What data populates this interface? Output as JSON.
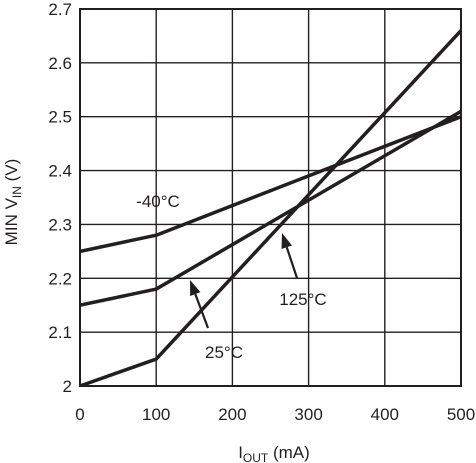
{
  "chart_data": {
    "type": "line",
    "xlabel_main": "I",
    "xlabel_sub": "OUT",
    "xlabel_unit": " (mA)",
    "ylabel_main": "MIN V",
    "ylabel_sub": "IN",
    "ylabel_unit": " (V)",
    "xlim": [
      0,
      500
    ],
    "ylim": [
      2.0,
      2.7
    ],
    "x_ticks": [
      "0",
      "100",
      "200",
      "300",
      "400",
      "500"
    ],
    "y_ticks": [
      "2",
      "2.1",
      "2.2",
      "2.3",
      "2.4",
      "2.5",
      "2.6",
      "2.7"
    ],
    "grid": true,
    "series": [
      {
        "name": "-40°C",
        "x": [
          0,
          100,
          500
        ],
        "y": [
          2.25,
          2.28,
          2.5
        ]
      },
      {
        "name": "25°C",
        "x": [
          0,
          100,
          500
        ],
        "y": [
          2.15,
          2.18,
          2.51
        ]
      },
      {
        "name": "125°C",
        "x": [
          0,
          100,
          500
        ],
        "y": [
          2.0,
          2.05,
          2.66
        ]
      }
    ],
    "annotations": [
      {
        "series": "-40°C",
        "text": "-40°C",
        "arrow": false
      },
      {
        "series": "25°C",
        "text": "25°C",
        "arrow": true
      },
      {
        "series": "125°C",
        "text": "125°C",
        "arrow": true
      }
    ]
  }
}
